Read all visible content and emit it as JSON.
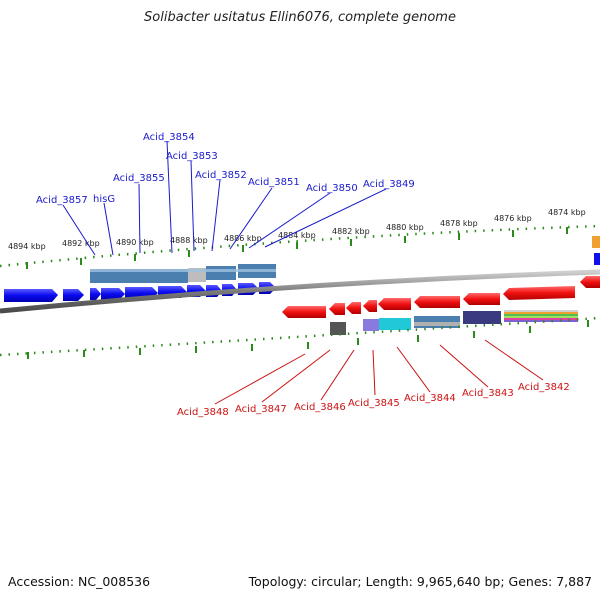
{
  "title": "Solibacter usitatus Ellin6076, complete genome",
  "accession": "Accession: NC_008536",
  "topology": "Topology: circular; Length: 9,965,640 bp; Genes: 7,887",
  "kbp_labels": [
    "4894 kbp",
    "4892 kbp",
    "4890 kbp",
    "4888 kbp",
    "4886 kbp",
    "4884 kbp",
    "4882 kbp",
    "4880 kbp",
    "4878 kbp",
    "4876 kbp",
    "4874 kbp"
  ],
  "top_labels": [
    "Acid_3857",
    "hisG",
    "Acid_3855",
    "Acid_3854",
    "Acid_3853",
    "Acid_3852",
    "Acid_3851",
    "Acid_3850",
    "Acid_3849"
  ],
  "bottom_labels": [
    "Acid_3848",
    "Acid_3847",
    "Acid_3846",
    "Acid_3845",
    "Acid_3844",
    "Acid_3843",
    "Acid_3842"
  ],
  "colors": {
    "forward_gene": "#1010ee",
    "reverse_gene": "#ee1111",
    "ticks": "#2a8a1a",
    "backbone": "#808080",
    "top_label": "#1a1acc",
    "bottom_label": "#cc1111"
  }
}
